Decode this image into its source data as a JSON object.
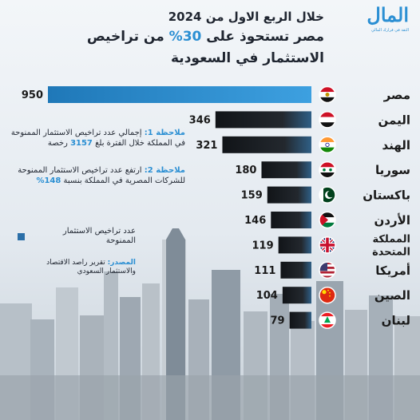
{
  "header": {
    "title_line1": "خلال الربع الاول من 2024",
    "title_line2_pre": "مصر تستحوذ على ",
    "title_line2_accent": "30%",
    "title_line2_post": " من تراخيص",
    "title_line3": "الاستثمار في السعودية"
  },
  "logo": {
    "word": "المال",
    "tagline": "الثقة في قرارك المالي"
  },
  "notes": {
    "note1_label": "ملاحظة 1:",
    "note1_text_a": " إجمالي عدد تراخيص الاستثمار الممنوحة في المملكة خلال الفترة بلغ ",
    "note1_highlight": "3157",
    "note1_text_b": " رخصة",
    "note2_label": "ملاحظة 2:",
    "note2_text_a": " ارتفع عدد تراخيص الاستثمار الممنوحة للشركات المصرية في المملكة بنسبة ",
    "note2_highlight": "148%"
  },
  "legend": {
    "label": "عدد تراخيص الاستثمار الممنوحة"
  },
  "source": {
    "label": "المصدر:",
    "text": " تقرير راصد الاقتصاد والاستثمار السعودي"
  },
  "colors": {
    "bar_main": "#1a1a1a",
    "bar_accent": "#2b8fd3",
    "legend_swatch": "#2b6fa8"
  },
  "chart_data": {
    "type": "bar",
    "orientation": "horizontal",
    "categories": [
      "مصر",
      "اليمن",
      "الهند",
      "سوريا",
      "باكستان",
      "الأردن",
      "المملكة المتحدة",
      "أمريكا",
      "الصين",
      "لبنان"
    ],
    "flags": [
      "egypt-flag",
      "yemen-flag",
      "india-flag",
      "syria-flag",
      "pakistan-flag",
      "jordan-flag",
      "uk-flag",
      "usa-flag",
      "china-flag",
      "lebanon-flag"
    ],
    "series": [
      {
        "name": "عدد تراخيص الاستثمار الممنوحة",
        "values": [
          950,
          346,
          321,
          180,
          159,
          146,
          119,
          111,
          104,
          79
        ]
      }
    ],
    "xlim": [
      0,
      950
    ],
    "grid": false,
    "legend_position": "left-middle"
  }
}
